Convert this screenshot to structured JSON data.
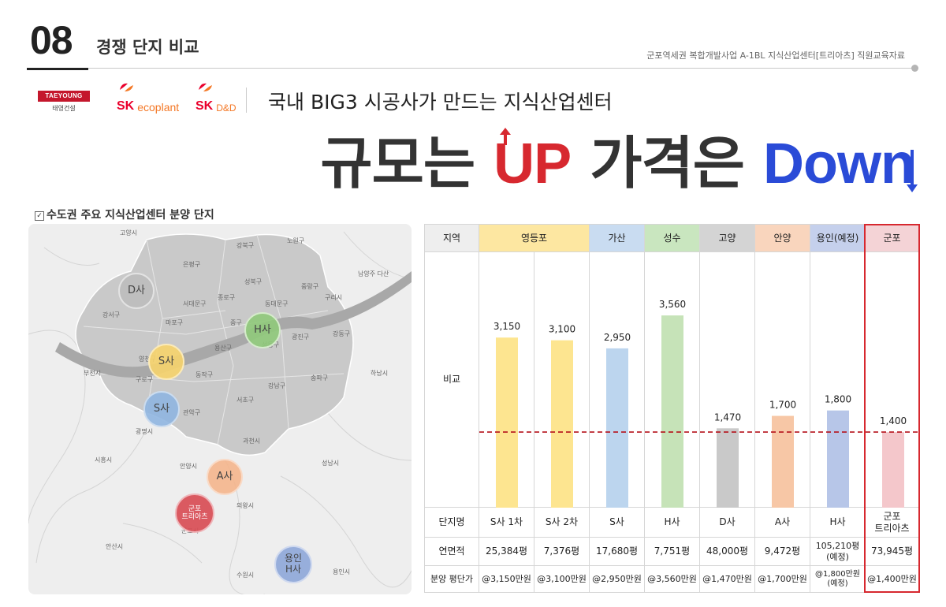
{
  "header": {
    "section_number": "08",
    "section_title": "경쟁 단지 비교",
    "document_caption": "군포역세권 복합개발사업 A-1BL 지식산업센터[트리아츠] 직원교육자료"
  },
  "logos": {
    "taeyoung_en": "TAEYOUNG",
    "taeyoung_ko": "태영건설",
    "sk_ecoplant": "ecoplant",
    "sk_dnd": "D&D",
    "sk": "SK"
  },
  "tagline": "국내 BIG3 시공사가 만드는 지식산업센터",
  "headline": {
    "part1": "규모는 ",
    "up": "UP",
    "part2": " 가격은 ",
    "down": "Down"
  },
  "map": {
    "title": "수도권 주요 지식산업센터 분양 단지",
    "districts": [
      "고양시",
      "노원구",
      "강북구",
      "은평구",
      "성북구",
      "중랑구",
      "구리시",
      "남양주 다산",
      "종로구",
      "동대문구",
      "서대문구",
      "강서구",
      "마포구",
      "중구",
      "광진구",
      "강동구",
      "용산구",
      "성동구",
      "양천구",
      "부천시",
      "구로구",
      "동작구",
      "강남구",
      "송파구",
      "하남시",
      "관악구",
      "서초구",
      "광명시",
      "과천시",
      "시흥시",
      "안양시",
      "성남시",
      "의왕시",
      "군포시",
      "안산시",
      "수원시",
      "용인시"
    ],
    "markers": [
      {
        "label": "D사",
        "color": "#bdbdbd"
      },
      {
        "label": "H사",
        "color": "#8fc97a"
      },
      {
        "label": "S사",
        "color": "#f6d36b"
      },
      {
        "label": "S사",
        "color": "#8fb5e0"
      },
      {
        "label": "A사",
        "color": "#f4b58c"
      },
      {
        "label": "군포\n트리아츠",
        "color": "#d84d55"
      },
      {
        "label": "용인\nH사",
        "color": "#8fa8d9"
      }
    ]
  },
  "table": {
    "row_labels": {
      "region": "지역",
      "compare": "비교",
      "complex": "단지명",
      "area": "연면적",
      "price": "분양 평단가"
    },
    "regions": [
      {
        "label": "영등포",
        "color": "#fde7a1"
      },
      {
        "label": "가산",
        "color": "#c9dcf1"
      },
      {
        "label": "성수",
        "color": "#c9e6bf"
      },
      {
        "label": "고양",
        "color": "#d4d4d4"
      },
      {
        "label": "안양",
        "color": "#f9d5bd"
      },
      {
        "label": "용인(예정)",
        "color": "#c5d0ec"
      },
      {
        "label": "군포",
        "color": "#f4d3d6"
      }
    ],
    "complexes": [
      "S사 1차",
      "S사 2차",
      "S사",
      "H사",
      "D사",
      "A사",
      "H사",
      "군포\n트리아츠"
    ],
    "areas": [
      "25,384평",
      "7,376평",
      "17,680평",
      "7,751평",
      "48,000평",
      "9,472평",
      "105,210평\n(예정)",
      "73,945평"
    ],
    "prices": [
      "@3,150만원",
      "@3,100만원",
      "@2,950만원",
      "@3,560만원",
      "@1,470만원",
      "@1,700만원",
      "@1,800만원\n(예정)",
      "@1,400만원"
    ]
  },
  "chart_data": {
    "type": "bar",
    "categories": [
      "S사 1차",
      "S사 2차",
      "S사",
      "H사",
      "D사",
      "A사",
      "H사",
      "군포 트리아츠"
    ],
    "values": [
      3150,
      3100,
      2950,
      3560,
      1470,
      1700,
      1800,
      1400
    ],
    "value_labels": [
      "3,150",
      "3,100",
      "2,950",
      "3,560",
      "1,470",
      "1,700",
      "1,800",
      "1,400"
    ],
    "bar_colors": [
      "#fde590",
      "#fde590",
      "#bcd5ee",
      "#c6e3b8",
      "#c9c9c9",
      "#f7c7a6",
      "#b7c6e8",
      "#f4c7cb"
    ],
    "reference_line_value": 1400,
    "reference_line_color": "#b5121b",
    "ylim": [
      0,
      4000
    ],
    "title": "",
    "xlabel": "",
    "ylabel": ""
  }
}
